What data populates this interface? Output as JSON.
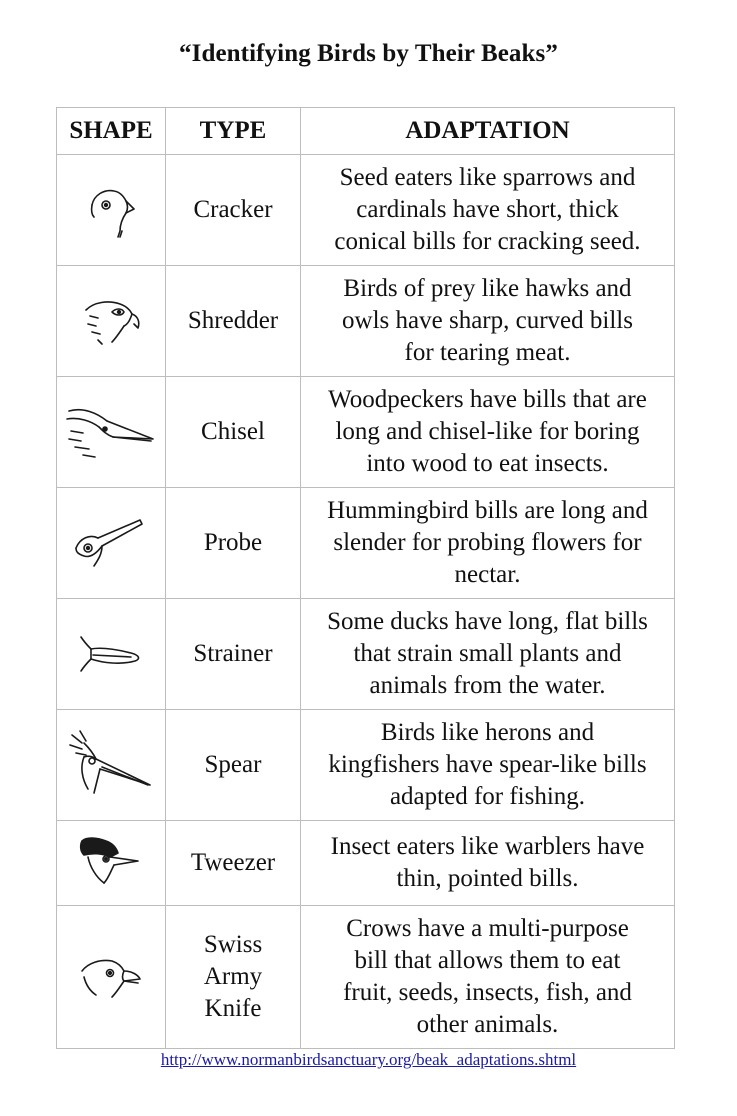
{
  "title": "“Identifying Birds by Their Beaks”",
  "table": {
    "headers": {
      "shape": "SHAPE",
      "type": "TYPE",
      "adaptation": "ADAPTATION"
    },
    "rows": [
      {
        "icon": "cracker-beak-icon",
        "type": "Cracker",
        "adaptation_lines": [
          "Seed eaters like sparrows and",
          "cardinals have short, thick",
          "conical bills for cracking seed."
        ]
      },
      {
        "icon": "shredder-beak-icon",
        "type": "Shredder",
        "adaptation_lines": [
          "Birds of prey like hawks and",
          "owls have sharp, curved bills",
          "for tearing meat."
        ]
      },
      {
        "icon": "chisel-beak-icon",
        "type": "Chisel",
        "adaptation_lines": [
          "Woodpeckers have bills that are",
          "long and chisel-like for boring",
          "into wood to eat insects."
        ]
      },
      {
        "icon": "probe-beak-icon",
        "type": "Probe",
        "adaptation_lines": [
          "Hummingbird bills are long and",
          "slender for probing flowers for",
          "nectar."
        ]
      },
      {
        "icon": "strainer-beak-icon",
        "type": "Strainer",
        "adaptation_lines": [
          "Some ducks have long, flat bills",
          "that strain small plants and",
          "animals from the water."
        ]
      },
      {
        "icon": "spear-beak-icon",
        "type": "Spear",
        "adaptation_lines": [
          "Birds like herons and",
          "kingfishers have spear-like bills",
          "adapted for fishing."
        ]
      },
      {
        "icon": "tweezer-beak-icon",
        "type": "Tweezer",
        "adaptation_lines": [
          "Insect eaters like warblers have",
          "thin, pointed bills."
        ]
      },
      {
        "icon": "swiss-army-knife-beak-icon",
        "type_lines": [
          "Swiss",
          "Army",
          "Knife"
        ],
        "adaptation_lines": [
          "Crows have a multi-purpose",
          "bill that allows them to eat",
          "fruit, seeds, insects, fish, and",
          "other animals."
        ]
      }
    ]
  },
  "source_link": "http://www.normanbirdsanctuary.org/beak_adaptations.shtml",
  "colors": {
    "link": "#1a1aa6",
    "border": "#bdbdbd"
  }
}
